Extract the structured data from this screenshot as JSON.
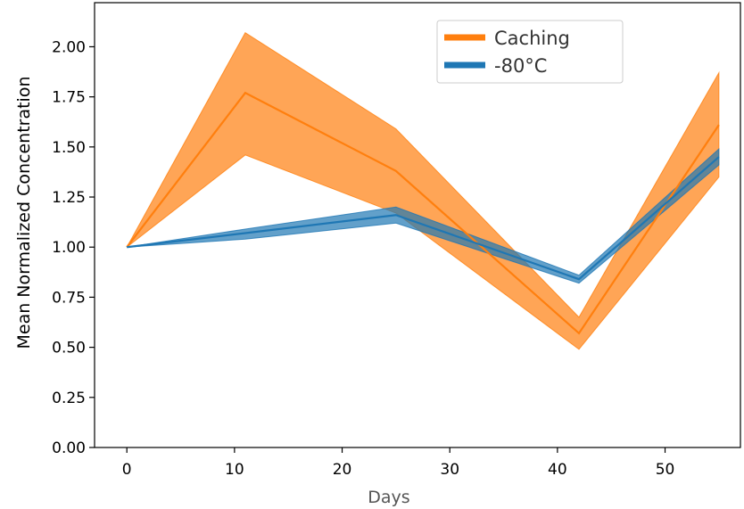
{
  "chart_data": {
    "type": "line",
    "xlabel": "Days",
    "ylabel": "Mean Normalized Concentration",
    "xlim": [
      -3,
      57
    ],
    "ylim": [
      0,
      2.22
    ],
    "xticks": [
      0,
      10,
      20,
      30,
      40,
      50
    ],
    "yticks": [
      0.0,
      0.25,
      0.5,
      0.75,
      1.0,
      1.25,
      1.5,
      1.75,
      2.0
    ],
    "xtick_labels": [
      "0",
      "10",
      "20",
      "30",
      "40",
      "50"
    ],
    "ytick_labels": [
      "0.00",
      "0.25",
      "0.50",
      "0.75",
      "1.00",
      "1.25",
      "1.50",
      "1.75",
      "2.00"
    ],
    "grid": false,
    "legend_position": "top-right",
    "series": [
      {
        "name": "Caching",
        "color": "#ff7f0e",
        "x": [
          0,
          11,
          25,
          42,
          55
        ],
        "y": [
          1.0,
          1.77,
          1.38,
          0.57,
          1.61
        ],
        "lower": [
          1.0,
          1.46,
          1.17,
          0.49,
          1.35
        ],
        "upper": [
          1.0,
          2.07,
          1.59,
          0.65,
          1.87
        ]
      },
      {
        "name": "-80°C",
        "color": "#1f77b4",
        "x": [
          0,
          11,
          25,
          42,
          55
        ],
        "y": [
          1.0,
          1.07,
          1.16,
          0.84,
          1.45
        ],
        "lower": [
          1.0,
          1.04,
          1.12,
          0.82,
          1.41
        ],
        "upper": [
          1.0,
          1.09,
          1.2,
          0.86,
          1.49
        ]
      }
    ]
  }
}
